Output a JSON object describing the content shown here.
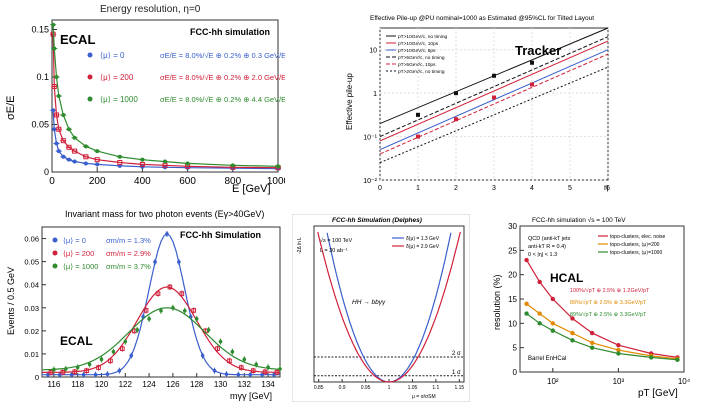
{
  "colors": {
    "blue": "#3a5fcd",
    "red": "#d0203a",
    "green": "#2e8b2e",
    "black": "#111111",
    "frame": "#cfcfcf"
  },
  "chart_data": [
    {
      "id": "ecal_energy",
      "type": "line",
      "title": "Energy resolution, η=0",
      "banner": "FCC-hh simulation",
      "big_label": "ECAL",
      "xlabel": "E [GeV]",
      "ylabel": "σE/E",
      "xlim": [
        0,
        1000
      ],
      "ylim": [
        0,
        0.16
      ],
      "xticks": [
        0,
        200,
        400,
        600,
        800,
        1000
      ],
      "yticks": [
        0,
        0.05,
        0.1,
        0.15
      ],
      "xtick_labels": [
        "0",
        "200",
        "400",
        "600",
        "800",
        "1000"
      ],
      "ytick_labels": [
        "0",
        "0.05",
        "0.1",
        "0.15"
      ],
      "x": [
        5,
        10,
        20,
        30,
        50,
        75,
        100,
        150,
        200,
        300,
        400,
        500,
        600,
        800,
        1000
      ],
      "series": [
        {
          "name": "⟨μ⟩ = 0",
          "fit": "σE/E = 8.0%/√E ⊕ 0.2% ⊕ 0.3 GeV/E",
          "color": "blue",
          "values": [
            0.065,
            0.045,
            0.03,
            0.022,
            0.016,
            0.013,
            0.011,
            0.009,
            0.008,
            0.0065,
            0.0055,
            0.005,
            0.0045,
            0.004,
            0.0035
          ]
        },
        {
          "name": "⟨μ⟩ = 200",
          "fit": "σE/E = 8.0%/√E ⊕ 0.2% ⊕ 2.0 GeV/E",
          "color": "red",
          "values": [
            0.145,
            0.09,
            0.06,
            0.045,
            0.033,
            0.026,
            0.022,
            0.016,
            0.013,
            0.01,
            0.008,
            0.007,
            0.006,
            0.005,
            0.0045
          ]
        },
        {
          "name": "⟨μ⟩ = 1000",
          "fit": "σE/E = 8.0%/√E ⊕ 0.2% ⊕ 4.4 GeV/E",
          "color": "green",
          "values": [
            0.155,
            0.13,
            0.1,
            0.08,
            0.06,
            0.045,
            0.036,
            0.027,
            0.022,
            0.016,
            0.013,
            0.011,
            0.009,
            0.007,
            0.006
          ]
        }
      ]
    },
    {
      "id": "tracker_pileup",
      "type": "line",
      "title": "Effective Pile-up @PU nominal=1000 as Estimated @95%CL for Tilted Layout",
      "big_label": "Tracker",
      "xlabel": "η",
      "ylabel": "Effective pile-up",
      "xlim": [
        0,
        6
      ],
      "ylim_log10": [
        -2,
        1.5
      ],
      "yscale": "log",
      "xticks": [
        0,
        1,
        2,
        3,
        4,
        5,
        6
      ],
      "xtick_labels": [
        "0",
        "1",
        "2",
        "3",
        "4",
        "5",
        "6"
      ],
      "ytick_labels": [
        "10⁻²",
        "10⁻¹",
        "1",
        "10"
      ],
      "ytick_log10": [
        -2,
        -1,
        0,
        1
      ],
      "series": [
        {
          "name": "pT>10GeV/c, no timing",
          "color": "black",
          "eta": [
            0,
            6
          ],
          "log10": [
            -0.7,
            1.5
          ]
        },
        {
          "name": "pT>10GeV/c, 10ps",
          "color": "red",
          "eta": [
            0,
            6
          ],
          "log10": [
            -1.1,
            1.2
          ]
        },
        {
          "name": "pT>10GeV/c, 5ps",
          "color": "blue",
          "eta": [
            0,
            6
          ],
          "log10": [
            -1.3,
            1.0
          ]
        },
        {
          "name": "pT>5GeV/c, no timing",
          "color": "black",
          "eta": [
            0,
            6
          ],
          "log10": [
            -1.0,
            1.3
          ]
        },
        {
          "name": "pT>5GeV/c, 10ps",
          "color": "red",
          "eta": [
            0,
            6
          ],
          "log10": [
            -1.4,
            0.9
          ]
        },
        {
          "name": "pT>2GeV/c, no timing",
          "color": "black",
          "eta": [
            0,
            6
          ],
          "log10": [
            -1.6,
            0.6
          ]
        }
      ],
      "markers": [
        {
          "color": "black",
          "eta": [
            1,
            2,
            3,
            4
          ],
          "log10": [
            -0.5,
            0.0,
            0.4,
            0.7
          ]
        },
        {
          "color": "red",
          "eta": [
            1,
            2,
            3,
            4
          ],
          "log10": [
            -1.0,
            -0.6,
            -0.1,
            0.2
          ]
        }
      ]
    },
    {
      "id": "ecal_diphoton",
      "type": "line",
      "title": "Invariant mass for two photon events (Eγ>40GeV)",
      "banner": "FCC-hh Simulation",
      "big_label": "ECAL",
      "xlabel": "mγγ [GeV]",
      "ylabel": "Events / 0.5 GeV",
      "xlim": [
        115,
        135
      ],
      "ylim": [
        0,
        0.065
      ],
      "xticks": [
        116,
        118,
        120,
        122,
        124,
        126,
        128,
        130,
        132,
        134
      ],
      "xtick_labels": [
        "116",
        "118",
        "120",
        "122",
        "124",
        "126",
        "128",
        "130",
        "132",
        "134"
      ],
      "yticks": [
        0,
        0.01,
        0.02,
        0.03,
        0.04,
        0.05,
        0.06
      ],
      "ytick_labels": [
        "0",
        "0.01",
        "0.02",
        "0.03",
        "0.04",
        "0.05",
        "0.06"
      ],
      "series": [
        {
          "name": "⟨μ⟩ = 0",
          "res": "σm/m = 1.3%",
          "color": "blue",
          "mean": 125.5,
          "sigma": 1.5,
          "peak": 0.061,
          "baseline": 0.001
        },
        {
          "name": "⟨μ⟩ = 200",
          "res": "σm/m = 2.9%",
          "color": "red",
          "mean": 125.5,
          "sigma": 2.5,
          "peak": 0.037,
          "baseline": 0.002
        },
        {
          "name": "⟨μ⟩ = 1000",
          "res": "σm/m = 3.7%",
          "color": "green",
          "mean": 125.5,
          "sigma": 3.2,
          "peak": 0.027,
          "baseline": 0.003
        }
      ]
    },
    {
      "id": "higgs_scan",
      "type": "line",
      "banner": "FCC-hh Simulation (Delphes)",
      "xlabel": "μ = σ/σSM",
      "ylabel": "-2Δ ln L",
      "text": [
        "√s = 100 TeV",
        "L = 30 ab⁻¹",
        "HH → bbγγ"
      ],
      "xlim": [
        0.84,
        1.16
      ],
      "ylim": [
        0,
        25
      ],
      "xticks": [
        0.85,
        0.9,
        0.95,
        1.0,
        1.05,
        1.1,
        1.15
      ],
      "xtick_labels": [
        "0.85",
        "0.9",
        "0.95",
        "1",
        "1.05",
        "1.1",
        "1.15"
      ],
      "hlines": [
        {
          "y": 4,
          "label": "2 σ"
        },
        {
          "y": 1,
          "label": "1 σ"
        }
      ],
      "series": [
        {
          "name": "δ(μ) = 1.3 GeV",
          "color": "blue",
          "center": 1.0,
          "width": 0.027
        },
        {
          "name": "δ(μ) = 2.9 GeV",
          "color": "red",
          "center": 1.0,
          "width": 0.031
        }
      ]
    },
    {
      "id": "hcal_resolution",
      "type": "line",
      "title": "FCC-hh simulation  √s = 100 TeV",
      "big_label": "HCAL",
      "xlabel": "pT [GeV]",
      "ylabel": "resolution (%)",
      "xscale": "log",
      "xlim_log10": [
        1.5,
        4.0
      ],
      "ylim": [
        0,
        30
      ],
      "xtick_log10": [
        2,
        3,
        4
      ],
      "xtick_labels": [
        "10²",
        "10³",
        "10⁴"
      ],
      "yticks": [
        0,
        5,
        10,
        15,
        20,
        25,
        30
      ],
      "ytick_labels": [
        "0",
        "5",
        "10",
        "15",
        "20",
        "25",
        "30"
      ],
      "text": [
        "QCD (anti-kT jets",
        "anti-kT R = 0.4)",
        "0 < |η| < 1.3",
        "Barrel EnHCal"
      ],
      "series": [
        {
          "name": "topo-clusters, elec. noise",
          "fit": "100%/√pT ⊕ 2.5% ⊕ 1.2GeV/pT",
          "color": "red",
          "log10": [
            1.6,
            1.8,
            2.0,
            2.3,
            2.6,
            3.0,
            3.5,
            3.9
          ],
          "values": [
            23,
            18.5,
            15,
            11,
            8,
            5.5,
            3.8,
            3.0
          ]
        },
        {
          "name": "topo-clusters, ⟨μ⟩=200",
          "fit": "89%/√pT ⊕ 2.5% ⊕ 3.3GeV/pT",
          "color": "orange",
          "log10": [
            1.6,
            1.8,
            2.0,
            2.3,
            2.6,
            3.0,
            3.5,
            3.9
          ],
          "values": [
            14,
            12,
            10,
            8,
            6,
            4.5,
            3.3,
            2.7
          ]
        },
        {
          "name": "topo-clusters, ⟨μ⟩=1000",
          "fit": "89%/√pT ⊕ 2.5% ⊕ 3.3GeV/pT",
          "color": "green",
          "log10": [
            1.6,
            1.8,
            2.0,
            2.3,
            2.6,
            3.0,
            3.5,
            3.9
          ],
          "values": [
            12,
            10,
            8.5,
            6.5,
            5,
            3.8,
            3.0,
            2.5
          ]
        }
      ]
    }
  ]
}
